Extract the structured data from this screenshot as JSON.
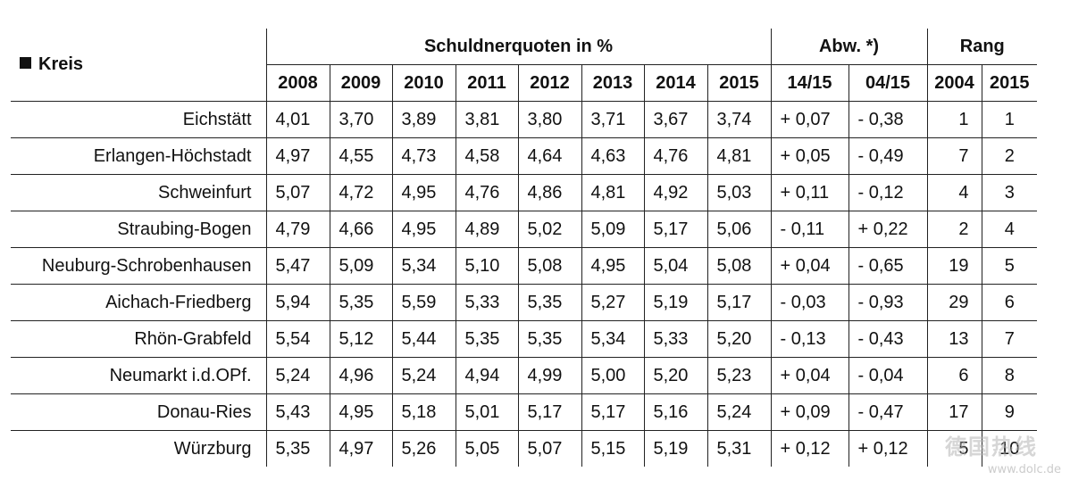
{
  "header": {
    "kreis_label": "Kreis",
    "group_quoten": "Schuldnerquoten in %",
    "group_abw": "Abw. *)",
    "group_rang": "Rang",
    "years": [
      "2008",
      "2009",
      "2010",
      "2011",
      "2012",
      "2013",
      "2014",
      "2015"
    ],
    "abw_cols": [
      "14/15",
      "04/15"
    ],
    "rang_cols": [
      "2004",
      "2015"
    ]
  },
  "rows": [
    {
      "kreis": "Eichstätt",
      "q": [
        "4,01",
        "3,70",
        "3,89",
        "3,81",
        "3,80",
        "3,71",
        "3,67",
        "3,74"
      ],
      "abw": [
        "+ 0,07",
        "- 0,38"
      ],
      "rang": [
        "1",
        "1"
      ]
    },
    {
      "kreis": "Erlangen-Höchstadt",
      "q": [
        "4,97",
        "4,55",
        "4,73",
        "4,58",
        "4,64",
        "4,63",
        "4,76",
        "4,81"
      ],
      "abw": [
        "+ 0,05",
        "- 0,49"
      ],
      "rang": [
        "7",
        "2"
      ]
    },
    {
      "kreis": "Schweinfurt",
      "q": [
        "5,07",
        "4,72",
        "4,95",
        "4,76",
        "4,86",
        "4,81",
        "4,92",
        "5,03"
      ],
      "abw": [
        "+ 0,11",
        "- 0,12"
      ],
      "rang": [
        "4",
        "3"
      ]
    },
    {
      "kreis": "Straubing-Bogen",
      "q": [
        "4,79",
        "4,66",
        "4,95",
        "4,89",
        "5,02",
        "5,09",
        "5,17",
        "5,06"
      ],
      "abw": [
        "- 0,11",
        "+ 0,22"
      ],
      "rang": [
        "2",
        "4"
      ]
    },
    {
      "kreis": "Neuburg-Schrobenhausen",
      "q": [
        "5,47",
        "5,09",
        "5,34",
        "5,10",
        "5,08",
        "4,95",
        "5,04",
        "5,08"
      ],
      "abw": [
        "+ 0,04",
        "- 0,65"
      ],
      "rang": [
        "19",
        "5"
      ]
    },
    {
      "kreis": "Aichach-Friedberg",
      "q": [
        "5,94",
        "5,35",
        "5,59",
        "5,33",
        "5,35",
        "5,27",
        "5,19",
        "5,17"
      ],
      "abw": [
        "- 0,03",
        "- 0,93"
      ],
      "rang": [
        "29",
        "6"
      ]
    },
    {
      "kreis": "Rhön-Grabfeld",
      "q": [
        "5,54",
        "5,12",
        "5,44",
        "5,35",
        "5,35",
        "5,34",
        "5,33",
        "5,20"
      ],
      "abw": [
        "- 0,13",
        "- 0,43"
      ],
      "rang": [
        "13",
        "7"
      ]
    },
    {
      "kreis": "Neumarkt i.d.OPf.",
      "q": [
        "5,24",
        "4,96",
        "5,24",
        "4,94",
        "4,99",
        "5,00",
        "5,20",
        "5,23"
      ],
      "abw": [
        "+ 0,04",
        "- 0,04"
      ],
      "rang": [
        "6",
        "8"
      ]
    },
    {
      "kreis": "Donau-Ries",
      "q": [
        "5,43",
        "4,95",
        "5,18",
        "5,01",
        "5,17",
        "5,17",
        "5,16",
        "5,24"
      ],
      "abw": [
        "+ 0,09",
        "- 0,47"
      ],
      "rang": [
        "17",
        "9"
      ]
    },
    {
      "kreis": "Würzburg",
      "q": [
        "5,35",
        "4,97",
        "5,26",
        "5,05",
        "5,07",
        "5,15",
        "5,19",
        "5,31"
      ],
      "abw": [
        "+ 0,12",
        "+ 0,12"
      ],
      "rang": [
        "5",
        "10"
      ]
    }
  ],
  "watermark": {
    "text": "德国热线",
    "url": "www.dolc.de"
  }
}
